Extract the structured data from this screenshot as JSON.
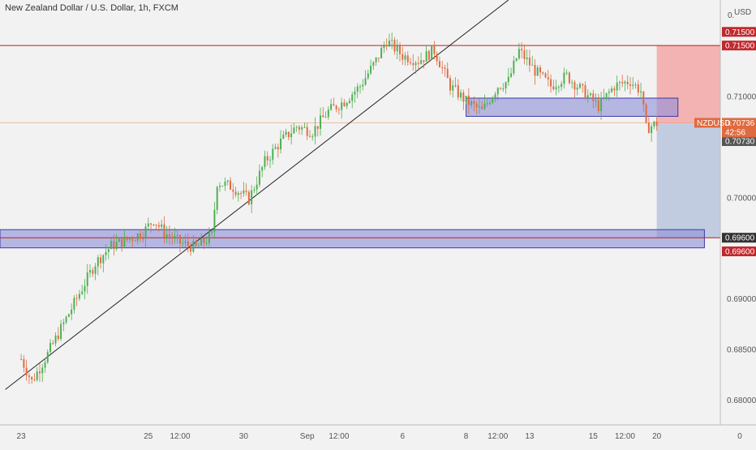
{
  "chart_title": "New Zealand Dollar / U.S. Dollar, 1h, FXCM",
  "currency_label": "USD",
  "axis_top_partial_label": "0.",
  "colors": {
    "background": "#f2f2f2",
    "up_candle": "#4caf50",
    "down_candle": "#e06a40",
    "resistance_line": "#b22222",
    "zone_fill": "#8e8ed8",
    "zone_border": "#3b3ba8",
    "trend_line": "#222222",
    "risk_box": "#f4a8a8",
    "reward_box": "#b9c6de",
    "tag_red": "#c0282d",
    "tag_dark": "#555555"
  },
  "chart_data": {
    "type": "candlestick",
    "title": "New Zealand Dollar / U.S. Dollar, 1h, FXCM",
    "symbol": "NZDUSD",
    "ylim": [
      0.6775,
      0.7195
    ],
    "y_ticks": [
      {
        "value": 0.71,
        "label": "0.71000"
      },
      {
        "value": 0.7,
        "label": "0.70000"
      },
      {
        "value": 0.69,
        "label": "0.69000"
      },
      {
        "value": 0.685,
        "label": "0.68500"
      },
      {
        "value": 0.68,
        "label": "0.68000"
      }
    ],
    "x_ticks": [
      {
        "index": 0,
        "label": "23"
      },
      {
        "index": 48,
        "label": "25"
      },
      {
        "index": 60,
        "label": "12:00"
      },
      {
        "index": 84,
        "label": "30"
      },
      {
        "index": 108,
        "label": "Sep"
      },
      {
        "index": 120,
        "label": "12:00"
      },
      {
        "index": 144,
        "label": "6"
      },
      {
        "index": 168,
        "label": "8"
      },
      {
        "index": 180,
        "label": "12:00"
      },
      {
        "index": 192,
        "label": "13"
      },
      {
        "index": 216,
        "label": "15"
      },
      {
        "index": 228,
        "label": "12:00"
      },
      {
        "index": 240,
        "label": "20"
      }
    ],
    "x_axis_right_label": "0",
    "x_range": [
      -8,
      264
    ],
    "price_keypoints": [
      [
        0,
        0.684
      ],
      [
        4,
        0.6818
      ],
      [
        10,
        0.6845
      ],
      [
        16,
        0.6875
      ],
      [
        22,
        0.6905
      ],
      [
        28,
        0.6935
      ],
      [
        34,
        0.6952
      ],
      [
        40,
        0.6958
      ],
      [
        46,
        0.6965
      ],
      [
        50,
        0.6978
      ],
      [
        54,
        0.6965
      ],
      [
        60,
        0.6955
      ],
      [
        66,
        0.695
      ],
      [
        72,
        0.6962
      ],
      [
        74,
        0.7015
      ],
      [
        80,
        0.701
      ],
      [
        86,
        0.6998
      ],
      [
        92,
        0.7035
      ],
      [
        98,
        0.7055
      ],
      [
        104,
        0.707
      ],
      [
        110,
        0.7065
      ],
      [
        116,
        0.7085
      ],
      [
        122,
        0.7095
      ],
      [
        128,
        0.711
      ],
      [
        134,
        0.7135
      ],
      [
        138,
        0.7155
      ],
      [
        144,
        0.714
      ],
      [
        150,
        0.7135
      ],
      [
        156,
        0.7145
      ],
      [
        162,
        0.711
      ],
      [
        168,
        0.7095
      ],
      [
        174,
        0.7085
      ],
      [
        180,
        0.711
      ],
      [
        184,
        0.7115
      ],
      [
        188,
        0.7145
      ],
      [
        194,
        0.7125
      ],
      [
        200,
        0.711
      ],
      [
        206,
        0.712
      ],
      [
        212,
        0.7105
      ],
      [
        218,
        0.709
      ],
      [
        224,
        0.711
      ],
      [
        230,
        0.7115
      ],
      [
        234,
        0.7105
      ],
      [
        236,
        0.7068
      ],
      [
        240,
        0.7073
      ]
    ],
    "annotations": {
      "resistance": {
        "price": 0.715,
        "label": "0.71500"
      },
      "support": {
        "price": 0.696,
        "label": "0.69600"
      },
      "upper_zone": {
        "from_index": 168,
        "to_index": 248,
        "price_low": 0.708,
        "price_high": 0.7098
      },
      "lower_zone": {
        "from_index": -8,
        "to_index": 258,
        "price_low": 0.695,
        "price_high": 0.6968
      },
      "trend_line": {
        "from": [
          -6,
          0.681
        ],
        "to": [
          184,
          0.7195
        ]
      },
      "position": {
        "from_index": 240,
        "to_index": 264,
        "entry": 0.7073,
        "stop": 0.715,
        "target": 0.696
      },
      "current_price": {
        "symbol": "NZDUSD",
        "price": 0.70736,
        "label": "0.70736",
        "countdown": "42:56"
      },
      "entry_label": {
        "price": 0.7073,
        "label": "0.70730"
      }
    }
  }
}
